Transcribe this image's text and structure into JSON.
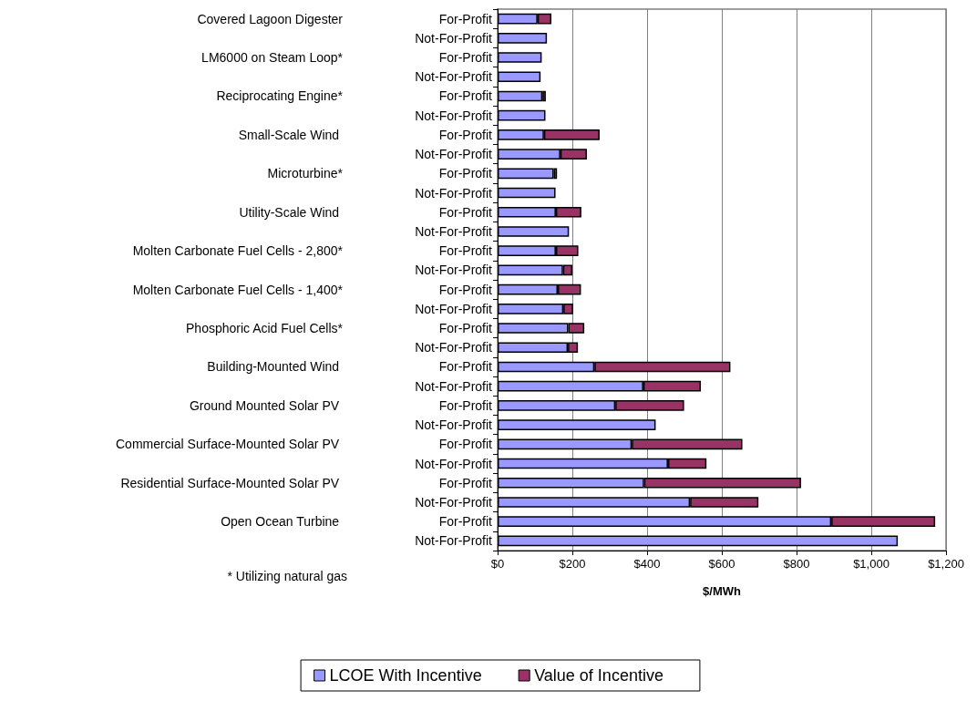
{
  "chart_data": {
    "type": "bar",
    "orientation": "horizontal",
    "stacked": true,
    "categories": [
      "For-Profit",
      "Not-For-Profit",
      "For-Profit",
      "Not-For-Profit",
      "For-Profit",
      "Not-For-Profit",
      "For-Profit",
      "Not-For-Profit",
      "For-Profit",
      "Not-For-Profit",
      "For-Profit",
      "Not-For-Profit",
      "For-Profit",
      "Not-For-Profit",
      "For-Profit",
      "Not-For-Profit",
      "For-Profit",
      "Not-For-Profit",
      "For-Profit",
      "Not-For-Profit",
      "For-Profit",
      "Not-For-Profit",
      "For-Profit",
      "Not-For-Profit",
      "For-Profit",
      "Not-For-Profit",
      "For-Profit",
      "Not-For-Profit"
    ],
    "series": [
      {
        "name": "LCOE With Incentive",
        "color": "#9999ff",
        "values": [
          107,
          132,
          118,
          115,
          120,
          128,
          124,
          168,
          150,
          155,
          156,
          191,
          156,
          175,
          161,
          176,
          189,
          188,
          259,
          390,
          315,
          423,
          359,
          456,
          392,
          515,
          893,
          1071
        ]
      },
      {
        "name": "Value of Incentive",
        "color": "#993366",
        "values": [
          37,
          null,
          null,
          null,
          9,
          null,
          149,
          71,
          9,
          null,
          68,
          null,
          60,
          25,
          62,
          26,
          43,
          27,
          364,
          154,
          184,
          null,
          296,
          103,
          420,
          183,
          278,
          null
        ]
      }
    ],
    "xlabel": "$/MWh",
    "xlim": [
      0,
      1200
    ],
    "xticks": [
      {
        "value": 0,
        "label": "$0"
      },
      {
        "value": 200,
        "label": "$200"
      },
      {
        "value": 400,
        "label": "$400"
      },
      {
        "value": 600,
        "label": "$600"
      },
      {
        "value": 800,
        "label": "$800"
      },
      {
        "value": 1000,
        "label": "$1,000"
      },
      {
        "value": 1200,
        "label": "$1,200"
      }
    ],
    "grid": "x",
    "legend": "bottom",
    "annotations": [
      "Covered Lagoon Digester",
      "LM6000 on Steam Loop*",
      "Reciprocating Engine*",
      "Small-Scale Wind ",
      "Microturbine*",
      "Utility-Scale Wind ",
      "Molten Carbonate Fuel Cells - 2,800*",
      "Molten Carbonate Fuel Cells - 1,400*",
      "Phosphoric Acid Fuel Cells*",
      "Building-Mounted Wind ",
      "Ground Mounted Solar PV ",
      "Commercial Surface-Mounted Solar PV ",
      "Residential Surface-Mounted Solar PV ",
      "Open Ocean Turbine ",
      "* Utilizing natural gas"
    ]
  }
}
